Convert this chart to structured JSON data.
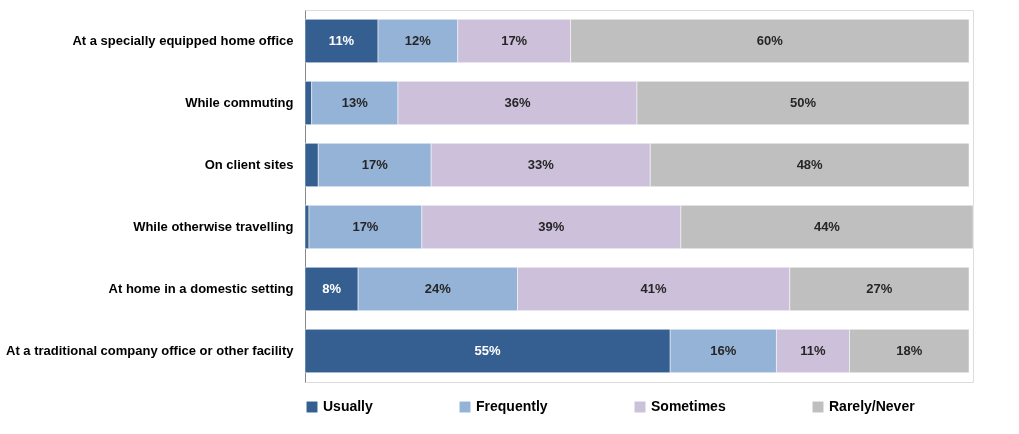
{
  "chart_data": {
    "type": "bar",
    "orientation": "horizontal",
    "stacked": true,
    "legend": "bottom",
    "tick_labels": "y",
    "xlim": [
      0,
      100.6
    ],
    "categories": [
      "At a specially equipped home office",
      "While commuting",
      "On client sites",
      "While otherwise travelling",
      "At home in a domestic setting",
      "At a traditional company office or other facility"
    ],
    "series": [
      {
        "name": "Usually",
        "color": "#365f91",
        "values": [
          11,
          1,
          2,
          0.6,
          8,
          55
        ],
        "value_labels": [
          "11%",
          null,
          null,
          null,
          "8%",
          "55%"
        ]
      },
      {
        "name": "Frequently",
        "color": "#95b3d7",
        "values": [
          12,
          13,
          17,
          17,
          24,
          16
        ],
        "value_labels": [
          "12%",
          "13%",
          "17%",
          "17%",
          "24%",
          "16%"
        ]
      },
      {
        "name": "Sometimes",
        "color": "#ccc0da",
        "values": [
          17,
          36,
          33,
          39,
          41,
          11
        ],
        "value_labels": [
          "17%",
          "36%",
          "33%",
          "39%",
          "41%",
          "11%"
        ]
      },
      {
        "name": "Rarely/Never",
        "color": "#bfbfbf",
        "values": [
          60,
          50,
          48,
          44,
          27,
          18
        ],
        "value_labels": [
          "60%",
          "50%",
          "48%",
          "44%",
          "27%",
          "18%"
        ]
      }
    ]
  }
}
